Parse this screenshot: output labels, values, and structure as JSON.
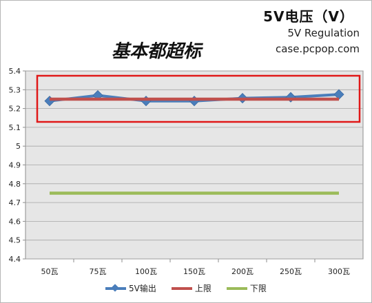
{
  "chart_data": {
    "type": "line",
    "title": "5V电压（V）",
    "subtitle": "5V Regulation",
    "source": "case.pcpop.com",
    "annotation": "基本都超标",
    "categories": [
      "50瓦",
      "75瓦",
      "100瓦",
      "150瓦",
      "200瓦",
      "250瓦",
      "300瓦"
    ],
    "ylim": [
      4.4,
      5.4
    ],
    "yticks": [
      "4.4",
      "4.5",
      "4.6",
      "4.7",
      "4.8",
      "4.9",
      "5",
      "5.1",
      "5.2",
      "5.3",
      "5.4"
    ],
    "grid": true,
    "legend_position": "bottom",
    "series": [
      {
        "name": "5V输出",
        "values": [
          5.24,
          5.27,
          5.24,
          5.24,
          5.255,
          5.26,
          5.275
        ],
        "color": "#4a7ebb",
        "marker": "diamond"
      },
      {
        "name": "上限",
        "values": [
          5.25,
          5.25,
          5.25,
          5.25,
          5.25,
          5.25,
          5.25
        ],
        "color": "#c0504d",
        "marker": "none"
      },
      {
        "name": "下限",
        "values": [
          4.75,
          4.75,
          4.75,
          4.75,
          4.75,
          4.75,
          4.75
        ],
        "color": "#9bbb59",
        "marker": "none"
      }
    ],
    "highlight_box_color": "#e01818"
  }
}
